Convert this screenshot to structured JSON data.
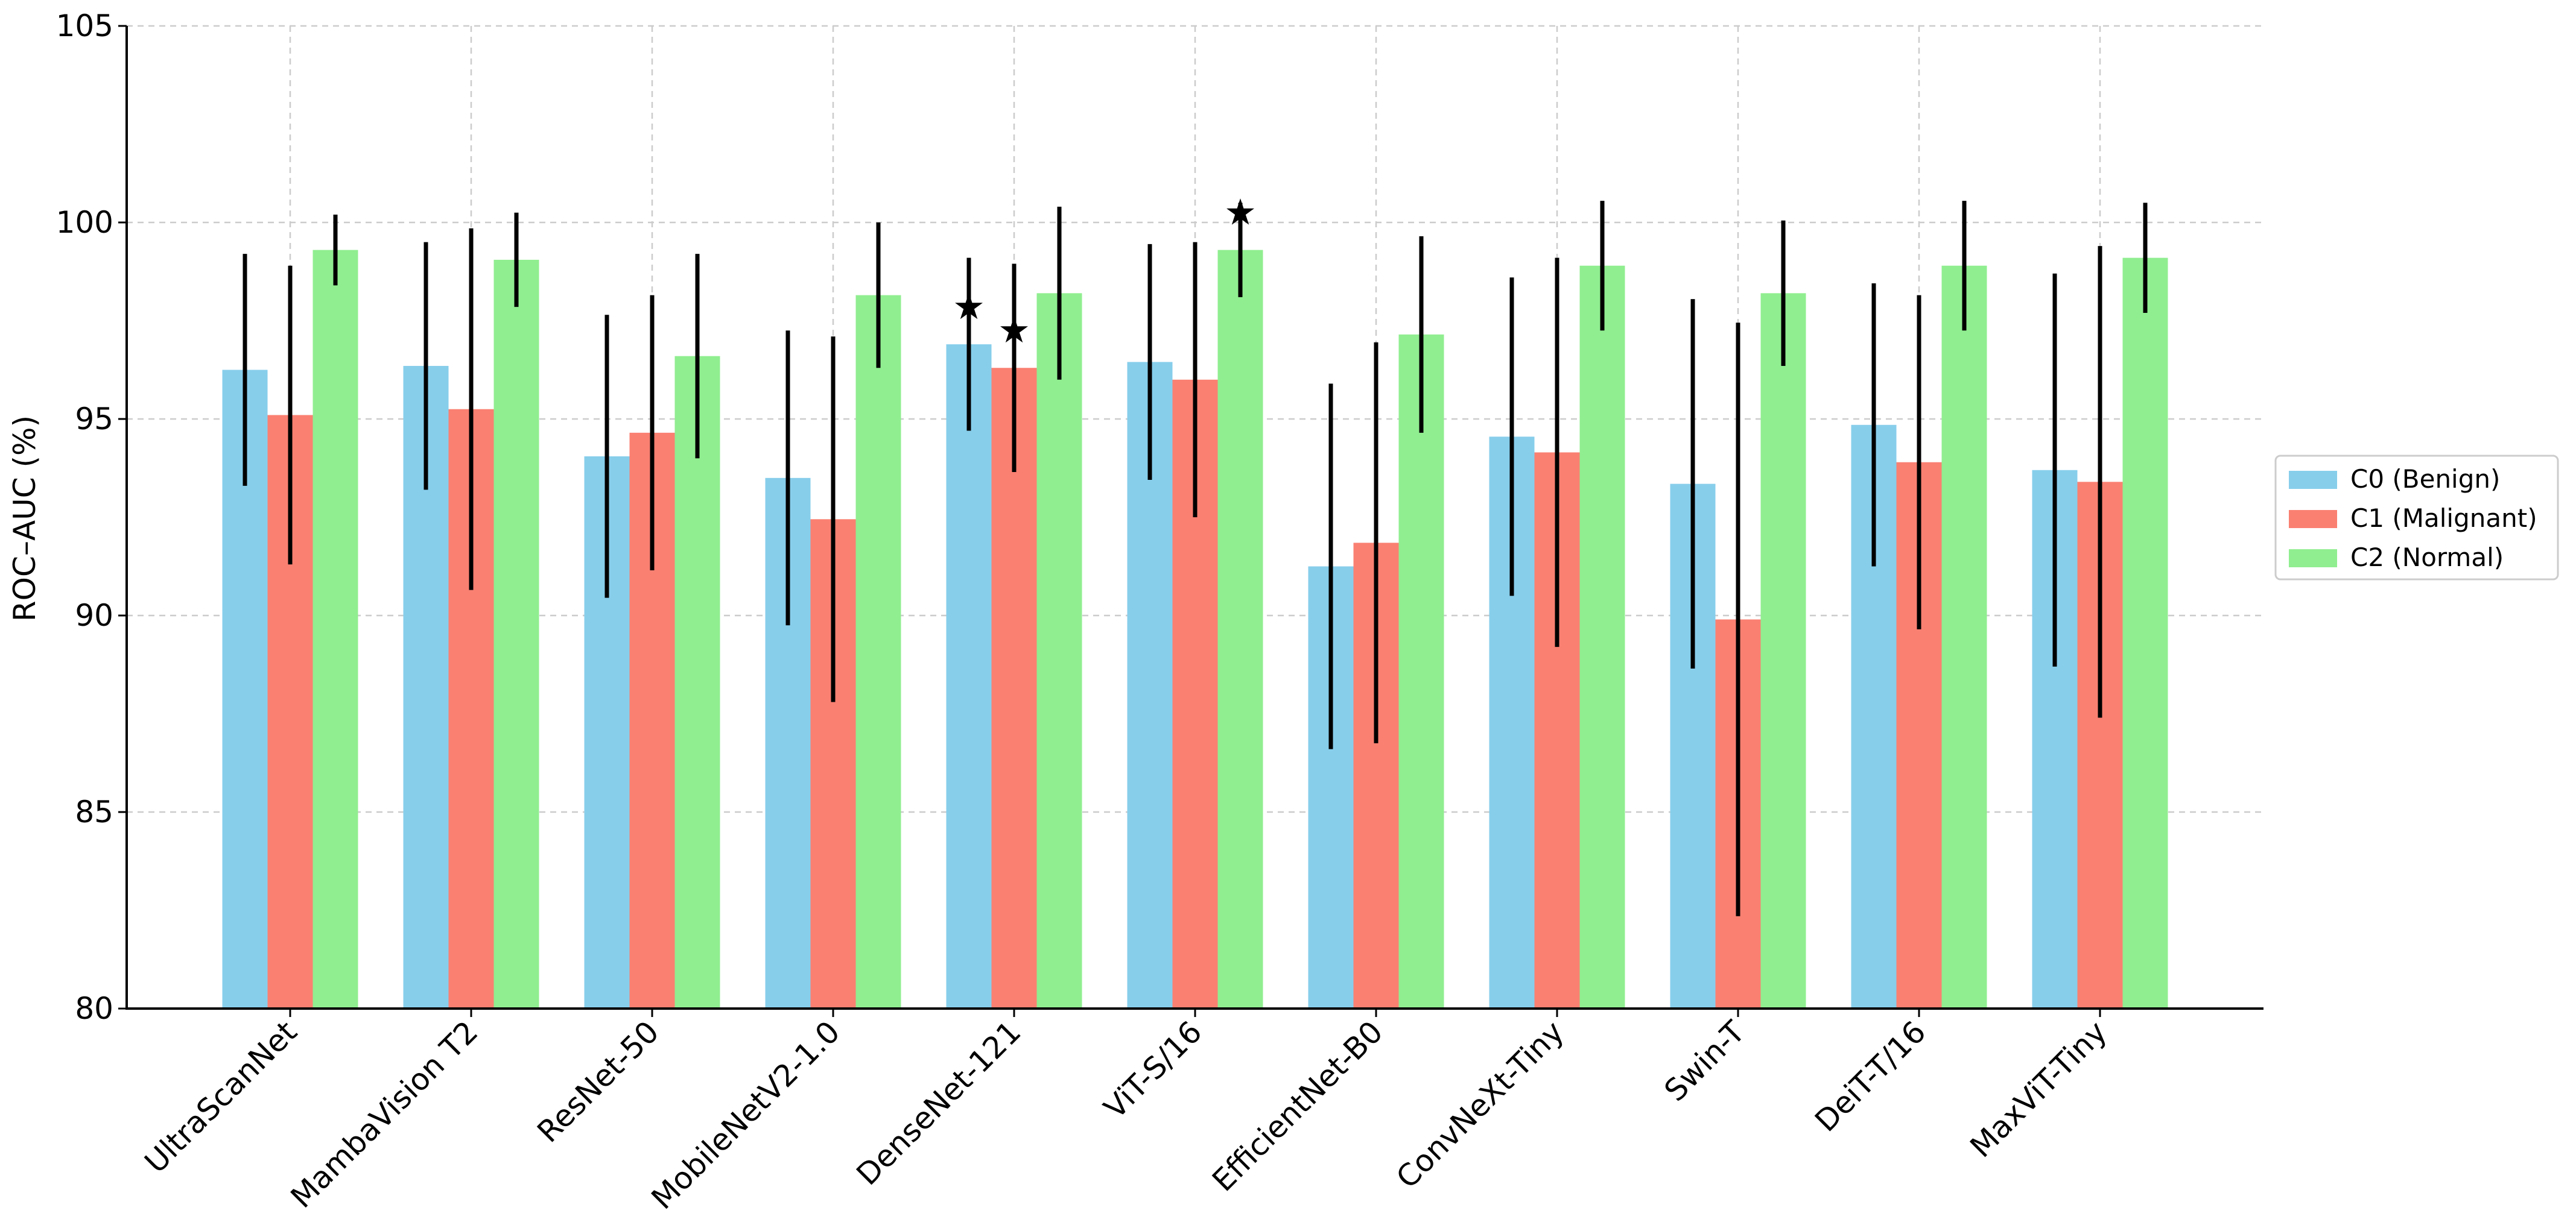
{
  "chart_data": {
    "type": "bar",
    "title": "",
    "xlabel": "",
    "ylabel": "ROC–AUC (%)",
    "ylim": [
      80,
      105
    ],
    "yticks": [
      80,
      85,
      90,
      95,
      100,
      105
    ],
    "grid": true,
    "legend_position": "right",
    "categories": [
      "UltraScanNet",
      "MambaVision T2",
      "ResNet-50",
      "MobileNetV2-1.0",
      "DenseNet-121",
      "ViT-S/16",
      "EfficientNet-B0",
      "ConvNeXt-Tiny",
      "Swin-T",
      "DeiT-T/16",
      "MaxViT-Tiny"
    ],
    "series": [
      {
        "name": "C0 (Benign)",
        "color": "#87ceeb",
        "values": [
          96.25,
          96.35,
          94.05,
          93.5,
          96.9,
          96.45,
          91.25,
          94.55,
          93.35,
          94.85,
          93.7
        ],
        "errors": [
          2.95,
          3.15,
          3.6,
          3.75,
          2.2,
          3.0,
          4.65,
          4.05,
          4.7,
          3.6,
          5.0
        ],
        "stars": [
          false,
          false,
          false,
          false,
          true,
          false,
          false,
          false,
          false,
          false,
          false
        ]
      },
      {
        "name": "C1 (Malignant)",
        "color": "#fa8072",
        "values": [
          95.1,
          95.25,
          94.65,
          92.45,
          96.3,
          96.0,
          91.85,
          94.15,
          89.9,
          93.9,
          93.4
        ],
        "errors": [
          3.8,
          4.6,
          3.5,
          4.65,
          2.65,
          3.5,
          5.1,
          4.95,
          7.55,
          4.25,
          6.0
        ],
        "stars": [
          false,
          false,
          false,
          false,
          true,
          false,
          false,
          false,
          false,
          false,
          false
        ]
      },
      {
        "name": "C2 (Normal)",
        "color": "#90ee90",
        "values": [
          99.3,
          99.05,
          96.6,
          98.15,
          98.2,
          99.3,
          97.15,
          98.9,
          98.2,
          98.9,
          99.1
        ],
        "errors": [
          0.9,
          1.2,
          2.6,
          1.85,
          2.2,
          1.2,
          2.5,
          1.65,
          1.85,
          1.65,
          1.4
        ],
        "stars": [
          false,
          false,
          false,
          false,
          false,
          true,
          false,
          false,
          false,
          false,
          false
        ]
      }
    ],
    "star_symbol": "★"
  }
}
